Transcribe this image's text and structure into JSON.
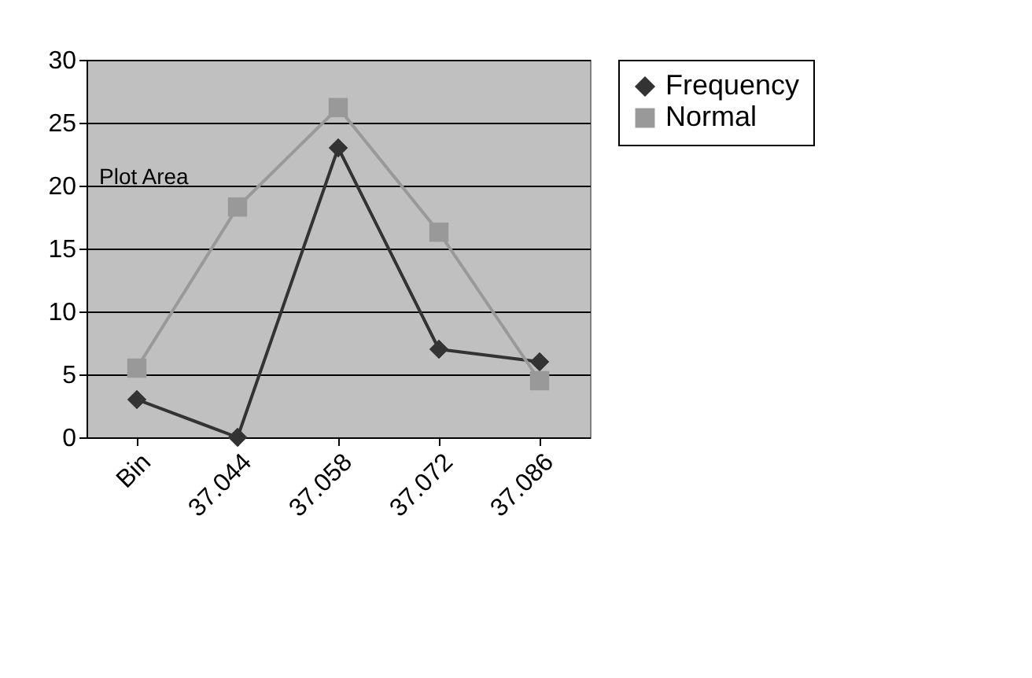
{
  "chart_data": {
    "type": "line",
    "categories": [
      "Bin",
      "37.044",
      "37.058",
      "37.072",
      "37.086"
    ],
    "series": [
      {
        "name": "Frequency",
        "color": "#333333",
        "marker": "diamond",
        "values": [
          3,
          0,
          23,
          7,
          6
        ]
      },
      {
        "name": "Normal",
        "color": "#999999",
        "marker": "square",
        "values": [
          5.5,
          18.3,
          26.2,
          16.3,
          4.5
        ]
      }
    ],
    "ylim": [
      0,
      30
    ],
    "yticks": [
      0,
      5,
      10,
      15,
      20,
      25,
      30
    ],
    "grid": "y",
    "legend": "right",
    "annotations": [
      "Plot Area"
    ]
  }
}
